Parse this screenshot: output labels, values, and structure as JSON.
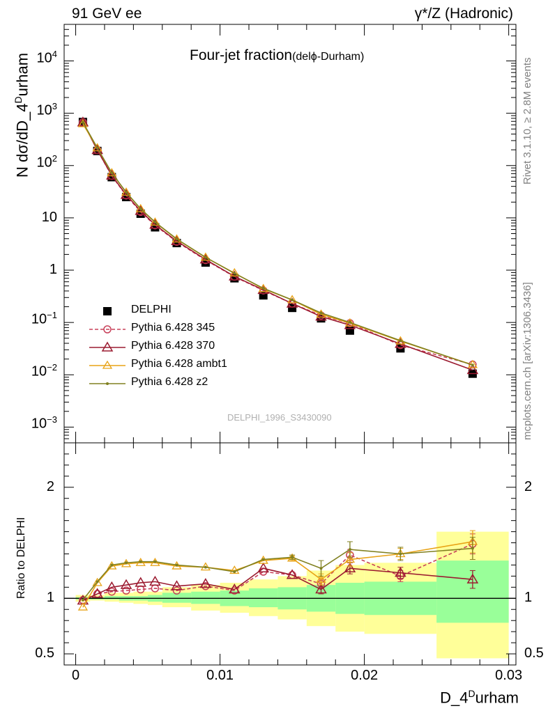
{
  "header": {
    "left": "91 GeV ee",
    "right": "γ*/Z (Hadronic)"
  },
  "side": {
    "rivet": "Rivet 3.1.10, ≥ 2.8M events",
    "mcplots": "mcplots.cern.ch [arXiv:1306.3436]"
  },
  "chart_data": [
    {
      "type": "scatter",
      "title_main": "Four-jet fraction",
      "title_sub": "(delϕ-Durham)",
      "ylabel_main": "N dσ/dD_4",
      "ylabel_sup": "D",
      "ylabel_end": "urham",
      "yscale": "log",
      "ylim": [
        0.0005,
        50000
      ],
      "xlim": [
        -0.0008,
        0.0305
      ],
      "watermark": "DELPHI_1996_S3430090",
      "y_ticks": [
        {
          "v": 0.001,
          "base": "10",
          "exp": "−3"
        },
        {
          "v": 0.01,
          "base": "10",
          "exp": "−2"
        },
        {
          "v": 0.1,
          "base": "10",
          "exp": "−1"
        },
        {
          "v": 1,
          "base": "1",
          "exp": ""
        },
        {
          "v": 10,
          "base": "10",
          "exp": ""
        },
        {
          "v": 100,
          "base": "10",
          "exp": "2"
        },
        {
          "v": 1000,
          "base": "10",
          "exp": "3"
        },
        {
          "v": 10000,
          "base": "10",
          "exp": "4"
        }
      ],
      "x": [
        0.0005,
        0.0015,
        0.0025,
        0.0035,
        0.0045,
        0.0055,
        0.007,
        0.009,
        0.011,
        0.013,
        0.015,
        0.017,
        0.019,
        0.0225,
        0.0275
      ],
      "series": [
        {
          "name": "DELPHI",
          "color": "#000000",
          "style": "data",
          "values": [
            680,
            190,
            60,
            25,
            12,
            6.6,
            3.3,
            1.4,
            0.7,
            0.33,
            0.19,
            0.12,
            0.07,
            0.032,
            0.0105
          ]
        },
        {
          "name": "Pythia 6.428 345",
          "color": "#c8415a",
          "style": "dashed-circle",
          "values": [
            672,
            198,
            63.5,
            26.8,
            13.0,
            7.2,
            3.5,
            1.56,
            0.75,
            0.41,
            0.23,
            0.136,
            0.097,
            0.037,
            0.0157
          ]
        },
        {
          "name": "Pythia 6.428 370",
          "color": "#9b1b30",
          "style": "solid-triangle",
          "values": [
            668,
            198,
            64.5,
            27.5,
            13.6,
            7.4,
            3.6,
            1.6,
            0.76,
            0.42,
            0.23,
            0.13,
            0.089,
            0.039,
            0.0123
          ]
        },
        {
          "name": "Pythia 6.428 ambt1",
          "color": "#e8a317",
          "style": "solid-triangle-open",
          "values": [
            625,
            216,
            72,
            30.6,
            14.8,
            8.2,
            3.9,
            1.75,
            0.88,
            0.44,
            0.27,
            0.143,
            0.097,
            0.044,
            0.0155
          ]
        },
        {
          "name": "Pythia 6.428 z2",
          "color": "#808020",
          "style": "solid-dot",
          "values": [
            670,
            217,
            72.5,
            30.8,
            14.9,
            8.3,
            3.95,
            1.76,
            0.87,
            0.45,
            0.27,
            0.152,
            0.1,
            0.045,
            0.0153
          ]
        }
      ]
    },
    {
      "type": "line",
      "ylabel": "Ratio to DELPHI",
      "ylim": [
        0.4,
        2.4
      ],
      "xlim": [
        -0.0008,
        0.0305
      ],
      "y_ticks": [
        0.5,
        1,
        2
      ],
      "x_ticks": [
        0,
        0.01,
        0.02,
        0.03
      ],
      "x_tick_labels": [
        "0",
        "0.01",
        "0.02",
        "0.03"
      ],
      "xlabel_main": "D_4",
      "xlabel_sup": "D",
      "xlabel_end": "urham",
      "bin_edges": [
        0,
        0.001,
        0.002,
        0.003,
        0.004,
        0.005,
        0.006,
        0.008,
        0.01,
        0.012,
        0.014,
        0.016,
        0.018,
        0.02,
        0.025,
        0.03
      ],
      "band_yellow": [
        [
          0.97,
          1.03
        ],
        [
          0.98,
          1.03
        ],
        [
          0.97,
          1.05
        ],
        [
          0.96,
          1.05
        ],
        [
          0.95,
          1.06
        ],
        [
          0.94,
          1.06
        ],
        [
          0.92,
          1.1
        ],
        [
          0.89,
          1.12
        ],
        [
          0.87,
          1.14
        ],
        [
          0.84,
          1.17
        ],
        [
          0.81,
          1.2
        ],
        [
          0.75,
          1.25
        ],
        [
          0.7,
          1.3
        ],
        [
          0.68,
          1.32
        ],
        [
          0.46,
          1.6
        ]
      ],
      "band_green": [
        [
          0.99,
          1.01
        ],
        [
          0.99,
          1.01
        ],
        [
          0.99,
          1.02
        ],
        [
          0.98,
          1.02
        ],
        [
          0.98,
          1.02
        ],
        [
          0.97,
          1.03
        ],
        [
          0.96,
          1.05
        ],
        [
          0.95,
          1.06
        ],
        [
          0.93,
          1.07
        ],
        [
          0.92,
          1.09
        ],
        [
          0.9,
          1.1
        ],
        [
          0.88,
          1.12
        ],
        [
          0.86,
          1.14
        ],
        [
          0.85,
          1.15
        ],
        [
          0.78,
          1.34
        ]
      ],
      "series": [
        {
          "name": "Pythia 6.428 345",
          "color": "#c8415a",
          "style": "dashed-circle",
          "values": [
            0.985,
            1.04,
            1.06,
            1.07,
            1.08,
            1.09,
            1.07,
            1.11,
            1.07,
            1.24,
            1.21,
            1.13,
            1.39,
            1.2,
            1.49
          ],
          "err": [
            0,
            0,
            0,
            0,
            0,
            0,
            0,
            0,
            0,
            0,
            0,
            0.04,
            0.05,
            0.05,
            0.09
          ]
        },
        {
          "name": "Pythia 6.428 370",
          "color": "#9b1b30",
          "style": "solid-triangle",
          "values": [
            0.98,
            1.04,
            1.1,
            1.12,
            1.14,
            1.15,
            1.11,
            1.13,
            1.08,
            1.27,
            1.21,
            1.08,
            1.27,
            1.23,
            1.17
          ],
          "err": [
            0,
            0,
            0,
            0,
            0,
            0,
            0,
            0,
            0,
            0,
            0,
            0.04,
            0.05,
            0.05,
            0.08
          ]
        },
        {
          "name": "Pythia 6.428 ambt1",
          "color": "#e8a317",
          "style": "solid-triangle-open",
          "values": [
            0.92,
            1.14,
            1.29,
            1.31,
            1.32,
            1.32,
            1.29,
            1.28,
            1.25,
            1.34,
            1.36,
            1.17,
            1.35,
            1.4,
            1.51
          ],
          "err": [
            0,
            0,
            0,
            0,
            0,
            0,
            0,
            0,
            0,
            0,
            0.02,
            0.05,
            0.06,
            0.05,
            0.1
          ]
        },
        {
          "name": "Pythia 6.428 z2",
          "color": "#808020",
          "style": "solid-dot",
          "values": [
            0.985,
            1.15,
            1.3,
            1.32,
            1.33,
            1.33,
            1.3,
            1.28,
            1.24,
            1.35,
            1.37,
            1.27,
            1.44,
            1.4,
            1.45
          ],
          "err": [
            0,
            0,
            0,
            0,
            0,
            0,
            0,
            0,
            0,
            0,
            0.02,
            0.07,
            0.07,
            0.06,
            0.1
          ]
        }
      ]
    }
  ]
}
